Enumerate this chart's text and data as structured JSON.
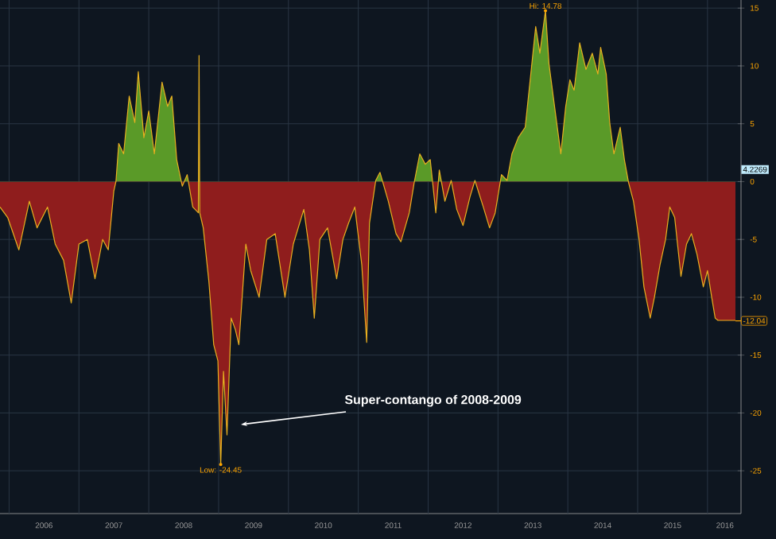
{
  "chart_data": {
    "type": "area",
    "x": [
      2005.87,
      2005.98,
      2006.14,
      2006.29,
      2006.4,
      2006.55,
      2006.66,
      2006.78,
      2006.89,
      2007.0,
      2007.12,
      2007.23,
      2007.34,
      2007.42,
      2007.5,
      2007.53,
      2007.57,
      2007.64,
      2007.72,
      2007.8,
      2007.85,
      2007.93,
      2008.0,
      2008.08,
      2008.19,
      2008.27,
      2008.33,
      2008.4,
      2008.48,
      2008.55,
      2008.63,
      2008.71,
      2008.72,
      2008.73,
      2008.78,
      2008.86,
      2008.93,
      2008.99,
      2009.03,
      2009.07,
      2009.12,
      2009.18,
      2009.24,
      2009.29,
      2009.39,
      2009.46,
      2009.58,
      2009.69,
      2009.81,
      2009.95,
      2010.07,
      2010.22,
      2010.3,
      2010.37,
      2010.45,
      2010.56,
      2010.69,
      2010.78,
      2010.86,
      2010.95,
      2011.05,
      2011.12,
      2011.16,
      2011.25,
      2011.31,
      2011.43,
      2011.54,
      2011.61,
      2011.73,
      2011.8,
      2011.88,
      2011.96,
      2012.03,
      2012.11,
      2012.16,
      2012.24,
      2012.33,
      2012.41,
      2012.5,
      2012.6,
      2012.67,
      2012.79,
      2012.88,
      2012.96,
      2013.05,
      2013.13,
      2013.2,
      2013.29,
      2013.39,
      2013.47,
      2013.54,
      2013.6,
      2013.68,
      2013.73,
      2013.81,
      2013.9,
      2013.97,
      2014.03,
      2014.09,
      2014.17,
      2014.26,
      2014.35,
      2014.43,
      2014.47,
      2014.55,
      2014.6,
      2014.66,
      2014.75,
      2014.81,
      2014.87,
      2014.94,
      2015.02,
      2015.09,
      2015.18,
      2015.24,
      2015.32,
      2015.4,
      2015.46,
      2015.53,
      2015.62,
      2015.7,
      2015.77,
      2015.85,
      2015.94,
      2016.0,
      2016.06,
      2016.11,
      2016.15,
      2016.4
    ],
    "series": [
      {
        "color": "#e8b020",
        "values": [
          -2.2,
          -3.1,
          -5.9,
          -1.7,
          -4.0,
          -2.2,
          -5.4,
          -6.8,
          -10.5,
          -5.4,
          -5.0,
          -8.4,
          -5.0,
          -5.9,
          -0.8,
          0,
          3.3,
          2.4,
          7.4,
          5.1,
          9.5,
          3.8,
          6.1,
          2.4,
          8.6,
          6.5,
          7.4,
          1.9,
          -0.4,
          0.6,
          -2.2,
          -2.7,
          10.9,
          -2.7,
          -4.0,
          -8.6,
          -14.1,
          -15.5,
          -24.5,
          -16.4,
          -21.9,
          -11.8,
          -12.8,
          -14.1,
          -5.4,
          -7.7,
          -10.0,
          -5.0,
          -4.5,
          -10.0,
          -5.4,
          -2.4,
          -5.9,
          -11.8,
          -5.0,
          -4.0,
          -8.4,
          -5.0,
          -3.6,
          -2.2,
          -7.2,
          -13.9,
          -3.6,
          0.1,
          0.8,
          -1.7,
          -4.5,
          -5.2,
          -2.7,
          -0.1,
          2.4,
          1.5,
          1.9,
          -2.7,
          1.0,
          -1.7,
          0.1,
          -2.4,
          -3.8,
          -1.3,
          0.1,
          -2.2,
          -4.0,
          -2.7,
          0.6,
          0.1,
          2.4,
          3.8,
          4.7,
          9.3,
          13.4,
          11.1,
          14.8,
          10.2,
          6.5,
          2.4,
          6.5,
          8.8,
          7.9,
          12.0,
          9.7,
          11.1,
          9.3,
          11.6,
          9.3,
          5.1,
          2.4,
          4.7,
          1.9,
          -0.1,
          -1.7,
          -5.0,
          -9.1,
          -11.8,
          -10.0,
          -7.2,
          -5.0,
          -2.2,
          -3.1,
          -8.2,
          -5.4,
          -4.5,
          -6.3,
          -9.1,
          -7.7,
          -10.0,
          -11.8,
          -12.0,
          -12.0
        ],
        "colors": [
          "#8f1d1d",
          "#8f1d1d",
          "#8f1d1d",
          "#8f1d1d",
          "#8f1d1d",
          "#8f1d1d",
          "#8f1d1d",
          "#8f1d1d",
          "#8f1d1d",
          "#8f1d1d",
          "#8f1d1d",
          "#8f1d1d",
          "#8f1d1d",
          "#8f1d1d",
          "#8f1d1d",
          "#5a9a28",
          "#5a9a28",
          "#5a9a28",
          "#5a9a28",
          "#5a9a28",
          "#5a9a28",
          "#5a9a28",
          "#5a9a28",
          "#5a9a28",
          "#5a9a28",
          "#5a9a28",
          "#5a9a28",
          "#5a9a28",
          "#8f1d1d",
          "#5a9a28",
          "#8f1d1d",
          "#8f1d1d",
          "#5a9a28",
          "#8f1d1d",
          "#8f1d1d",
          "#8f1d1d",
          "#8f1d1d",
          "#8f1d1d",
          "#8f1d1d",
          "#8f1d1d",
          "#8f1d1d",
          "#8f1d1d",
          "#8f1d1d",
          "#8f1d1d",
          "#8f1d1d",
          "#8f1d1d",
          "#8f1d1d",
          "#8f1d1d",
          "#8f1d1d",
          "#8f1d1d",
          "#8f1d1d",
          "#8f1d1d",
          "#8f1d1d",
          "#8f1d1d",
          "#8f1d1d",
          "#8f1d1d",
          "#8f1d1d",
          "#8f1d1d",
          "#8f1d1d",
          "#8f1d1d",
          "#8f1d1d",
          "#8f1d1d",
          "#8f1d1d",
          "#5a9a28",
          "#5a9a28",
          "#8f1d1d",
          "#8f1d1d",
          "#8f1d1d",
          "#8f1d1d",
          "#8f1d1d",
          "#5a9a28",
          "#5a9a28",
          "#5a9a28",
          "#8f1d1d",
          "#5a9a28",
          "#8f1d1d",
          "#5a9a28",
          "#8f1d1d",
          "#8f1d1d",
          "#8f1d1d",
          "#5a9a28",
          "#8f1d1d",
          "#8f1d1d",
          "#8f1d1d",
          "#5a9a28",
          "#5a9a28",
          "#5a9a28",
          "#5a9a28",
          "#5a9a28",
          "#5a9a28",
          "#5a9a28",
          "#5a9a28",
          "#5a9a28",
          "#5a9a28",
          "#5a9a28",
          "#5a9a28",
          "#5a9a28",
          "#5a9a28",
          "#5a9a28",
          "#5a9a28",
          "#5a9a28",
          "#5a9a28",
          "#5a9a28",
          "#5a9a28",
          "#5a9a28",
          "#5a9a28",
          "#5a9a28",
          "#5a9a28",
          "#5a9a28",
          "#8f1d1d",
          "#8f1d1d",
          "#8f1d1d",
          "#8f1d1d",
          "#8f1d1d",
          "#8f1d1d",
          "#8f1d1d",
          "#8f1d1d",
          "#8f1d1d",
          "#8f1d1d",
          "#8f1d1d",
          "#8f1d1d",
          "#8f1d1d",
          "#8f1d1d",
          "#8f1d1d",
          "#8f1d1d",
          "#8f1d1d",
          "#8f1d1d",
          "#8f1d1d",
          "#8f1d1d"
        ]
      }
    ],
    "xlim": [
      2005.87,
      2016.48
    ],
    "ylim": [
      -28.7,
      15.7
    ],
    "xticks": [
      {
        "value": 2006,
        "label": null
      },
      {
        "value": 2007,
        "label": null
      },
      {
        "value": 2008,
        "label": null
      },
      {
        "value": 2009,
        "label": null
      },
      {
        "value": 2010,
        "label": null
      },
      {
        "value": 2011,
        "label": null
      },
      {
        "value": 2012,
        "label": null
      },
      {
        "value": 2013,
        "label": null
      },
      {
        "value": 2014,
        "label": null
      },
      {
        "value": 2015,
        "label": null
      },
      {
        "value": 2016,
        "label": null
      },
      {
        "value": 2006.5,
        "label": "2006"
      },
      {
        "value": 2007.5,
        "label": "2007"
      },
      {
        "value": 2008.5,
        "label": "2008"
      },
      {
        "value": 2009.5,
        "label": "2009"
      },
      {
        "value": 2010.5,
        "label": "2010"
      },
      {
        "value": 2011.5,
        "label": "2011"
      },
      {
        "value": 2012.5,
        "label": "2012"
      },
      {
        "value": 2013.5,
        "label": "2013"
      },
      {
        "value": 2014.5,
        "label": "2014"
      },
      {
        "value": 2015.5,
        "label": "2015"
      },
      {
        "value": 2016.25,
        "label": "2016"
      }
    ],
    "yticks": [
      15,
      10,
      5,
      0,
      -5,
      -10,
      -15,
      -20,
      -25
    ],
    "grid": true,
    "annotations": [
      {
        "text": "Hi: 14.78",
        "x": 2013.68,
        "y": 14.78
      },
      {
        "text": "Low: -24.45",
        "x": 2009.03,
        "y": -24.45
      },
      {
        "text": "Super-contango of 2008-2009",
        "x": 2009.32,
        "y": -21.0
      },
      "4.2269",
      {
        "text": "-12.04",
        "x": 2016.4,
        "y": -12.04
      }
    ]
  }
}
